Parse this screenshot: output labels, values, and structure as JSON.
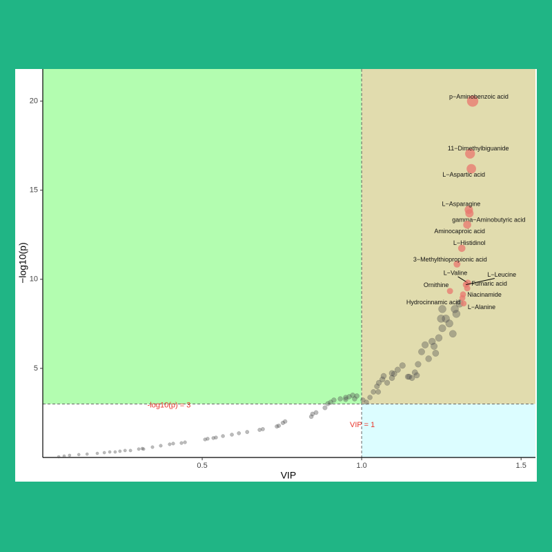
{
  "chart_data": {
    "type": "scatter",
    "x_label": "VIP",
    "y_label": "−log10(p)",
    "xlim": [
      0,
      1.545
    ],
    "ylim": [
      0,
      21.8
    ],
    "xticks": [
      0.5,
      {
        "value": 1,
        "label": "1.0"
      },
      1.5
    ],
    "yticks": [
      5,
      10,
      15,
      20
    ],
    "thresholds": {
      "x": 1,
      "y": 3
    },
    "annotations": {
      "y_threshold": "-log10(p) = 3",
      "x_threshold": "VIP = 1"
    },
    "region_colors": {
      "upper_left": "#b3fdb0",
      "upper_right": "#e1dcae",
      "lower_right": "#dcfdff",
      "lower_left": "#ffffff"
    },
    "series": [
      {
        "color": "#555555",
        "x": [
          0.05,
          0.067,
          0.084,
          0.113,
          0.139,
          0.171,
          0.193,
          0.21,
          0.227,
          0.242,
          0.258,
          0.275,
          0.301,
          0.312,
          0.316,
          0.344,
          0.37,
          0.398,
          0.409,
          0.435,
          0.446,
          0.509,
          0.517,
          0.535,
          0.543,
          0.565,
          0.593,
          0.615,
          0.641,
          0.68,
          0.69,
          0.734,
          0.74,
          0.753,
          0.76,
          0.842,
          0.846,
          0.857,
          0.885,
          0.894,
          0.903,
          0.913,
          0.933,
          0.95,
          0.961,
          0.972,
          0.985,
          0.978,
          0.95,
          1.026,
          1.037,
          1.048,
          1.054,
          1.065,
          1.069,
          1.08,
          1.095,
          1.102,
          1.113,
          1.128,
          1.145,
          1.158,
          1.167,
          1.177,
          1.188,
          1.199,
          1.21,
          1.221,
          1.227,
          1.232,
          1.242,
          1.253,
          1.264,
          1.275,
          1.286,
          1.297,
          1.307,
          1.292,
          1.253,
          1.249,
          1.173,
          1.149,
          1.095,
          1.052,
          1.004,
          1.015
        ],
        "values": [
          0.04,
          0.08,
          0.12,
          0.16,
          0.19,
          0.23,
          0.27,
          0.31,
          0.31,
          0.35,
          0.39,
          0.39,
          0.47,
          0.5,
          0.47,
          0.58,
          0.66,
          0.74,
          0.78,
          0.81,
          0.85,
          1.01,
          1.05,
          1.09,
          1.12,
          1.2,
          1.28,
          1.36,
          1.43,
          1.55,
          1.59,
          1.74,
          1.78,
          1.94,
          2.02,
          2.29,
          2.44,
          2.52,
          2.79,
          3.02,
          3.1,
          3.22,
          3.29,
          3.37,
          3.41,
          3.49,
          3.45,
          3.29,
          3.26,
          3.37,
          3.68,
          3.99,
          4.19,
          4.38,
          4.57,
          4.19,
          4.46,
          4.69,
          4.92,
          5.16,
          4.53,
          4.46,
          4.77,
          5.23,
          5.93,
          6.32,
          5.54,
          6.51,
          6.24,
          5.85,
          6.71,
          7.25,
          7.79,
          7.52,
          6.94,
          8.06,
          8.64,
          8.33,
          8.33,
          7.79,
          4.61,
          4.53,
          4.73,
          3.68,
          3.22,
          3.1
        ]
      },
      {
        "color": "#e8776d",
        "x": [
          1.348,
          1.34,
          1.344,
          1.336,
          1.338,
          1.331,
          1.314,
          1.299,
          1.333,
          1.327,
          1.331,
          1.277,
          1.318,
          1.316,
          1.32
        ],
        "values": [
          20.0,
          17.05,
          16.2,
          13.9,
          13.7,
          13.06,
          11.74,
          10.85,
          9.8,
          9.7,
          9.5,
          9.34,
          9.15,
          8.95,
          8.64
        ],
        "labels": [
          "p−Aminobenzoic acid",
          "11−Dimethylbiguanide",
          "L−Aspartic acid",
          "L−Asparagine",
          "gamma−Aminobutyric acid",
          "Aminocaproic acid",
          "L−Histidinol",
          "3−Methylthiopropionic acid",
          "L−Valine",
          "L−Leucine",
          "Fumaric acid",
          "Ornithine",
          "Niacinamide",
          "Hydrocinnamic acid",
          "L−Alanine"
        ]
      }
    ]
  }
}
